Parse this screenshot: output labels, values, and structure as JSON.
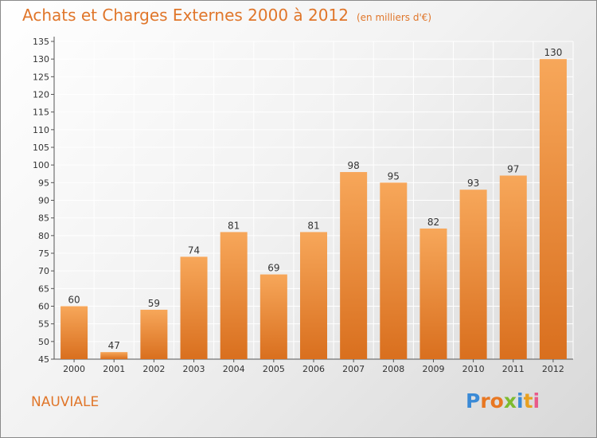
{
  "title": "Achats et Charges Externes 2000 à 2012",
  "unit": "(en milliers d'€)",
  "commune": "NAUVIALE",
  "brand": {
    "text": "Proxiti",
    "letter_colors": [
      "#3a8ad6",
      "#e87722",
      "#e87722",
      "#7dbb2f",
      "#3a8ad6",
      "#e8a020",
      "#e85a8a"
    ]
  },
  "colors": {
    "title": "#e0762a",
    "bar_top": "#f7a75a",
    "bar_bottom": "#d96f1e",
    "grid": "#ffffff"
  },
  "chart_data": {
    "type": "bar",
    "categories": [
      "2000",
      "2001",
      "2002",
      "2003",
      "2004",
      "2005",
      "2006",
      "2007",
      "2008",
      "2009",
      "2010",
      "2011",
      "2012"
    ],
    "values": [
      60,
      47,
      59,
      74,
      81,
      69,
      81,
      98,
      95,
      82,
      93,
      97,
      130
    ],
    "ylim": [
      45,
      135
    ],
    "yticks": [
      45,
      50,
      55,
      60,
      65,
      70,
      75,
      80,
      85,
      90,
      95,
      100,
      105,
      110,
      115,
      120,
      125,
      130,
      135
    ],
    "grid": true,
    "data_labels": true
  }
}
